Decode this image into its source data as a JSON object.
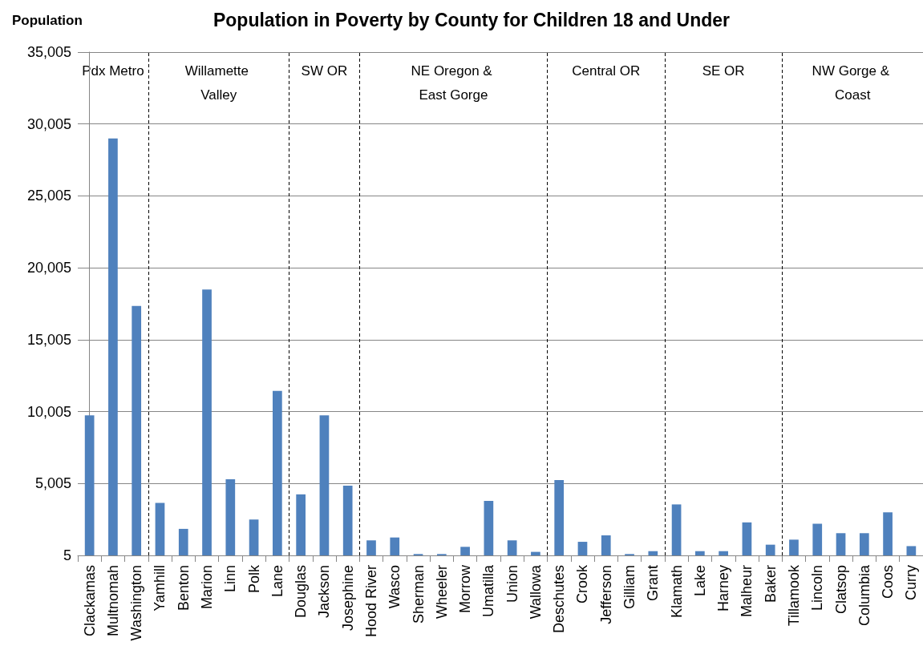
{
  "chart_data": {
    "type": "bar",
    "title": "Population in Poverty by County for Children 18 and Under",
    "ylabel": "Population",
    "categories": [
      "Clackamas",
      "Multnomah",
      "Washington",
      "Yamhill",
      "Benton",
      "Marion",
      "Linn",
      "Polk",
      "Lane",
      "Douglas",
      "Jackson",
      "Josephine",
      "Hood River",
      "Wasco",
      "Sherman",
      "Wheeler",
      "Morrow",
      "Umatilla",
      "Union",
      "Wallowa",
      "Deschutes",
      "Crook",
      "Jefferson",
      "Gilliam",
      "Grant",
      "Klamath",
      "Lake",
      "Harney",
      "Malheur",
      "Baker",
      "Tillamook",
      "Lincoln",
      "Clatsop",
      "Columbia",
      "Coos",
      "Curry"
    ],
    "values": [
      9750,
      29000,
      17350,
      3650,
      1850,
      18500,
      5300,
      2500,
      11450,
      4250,
      9750,
      4850,
      1050,
      1250,
      100,
      100,
      600,
      3800,
      1050,
      250,
      5250,
      950,
      1400,
      100,
      300,
      3550,
      300,
      300,
      2300,
      750,
      1100,
      2200,
      1550,
      1550,
      3000,
      650
    ],
    "color": "#4f81bd",
    "ylim": [
      5,
      35005
    ],
    "yticks": [
      {
        "value": 5,
        "label": "5"
      },
      {
        "value": 5005,
        "label": "5,005"
      },
      {
        "value": 10005,
        "label": "10,005"
      },
      {
        "value": 15005,
        "label": "15,005"
      },
      {
        "value": 20005,
        "label": "20,005"
      },
      {
        "value": 25005,
        "label": "25,005"
      },
      {
        "value": 30005,
        "label": "30,005"
      },
      {
        "value": 35005,
        "label": "35,005"
      }
    ],
    "grid": "y",
    "annotations": [
      "Pdx Metro",
      "Willamette Valley",
      "SW OR",
      "NE Oregon & East Gorge",
      "Central OR",
      "SE OR",
      "NW Gorge & Coast"
    ]
  }
}
